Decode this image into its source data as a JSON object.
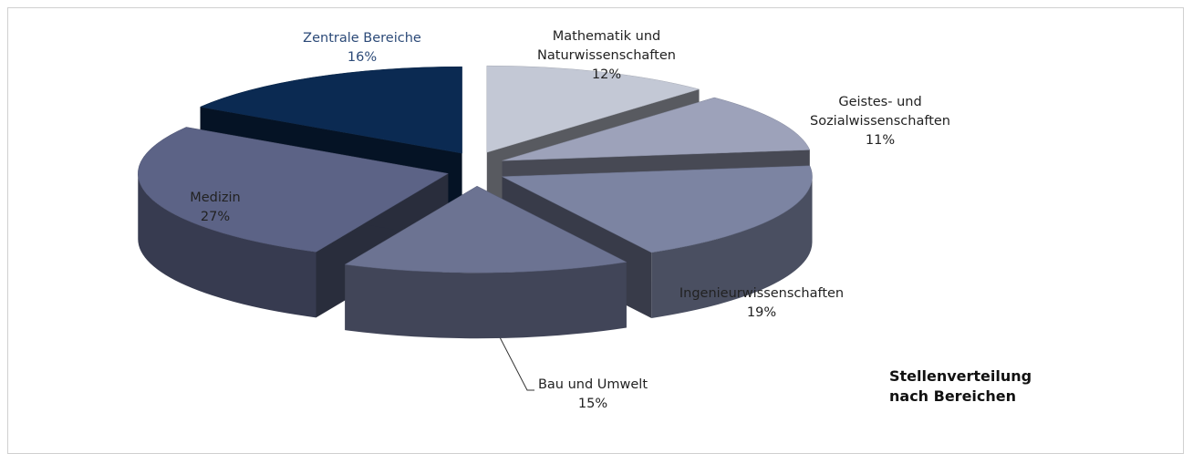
{
  "chart_data": {
    "type": "pie",
    "title": "Stellenverteilung nach Bereichen",
    "categories": [
      "Mathematik und Naturwissenschaften",
      "Geistes- und Sozialwissenschaften",
      "Ingenieurwissenschaften",
      "Bau und Umwelt",
      "Medizin",
      "Zentrale Bereiche"
    ],
    "values": [
      12,
      11,
      19,
      15,
      27,
      16
    ],
    "value_labels": [
      "12%",
      "11%",
      "19%",
      "15%",
      "27%",
      "16%"
    ],
    "colors": [
      "#c3c8d5",
      "#9da2ba",
      "#7c84a2",
      "#6c7392",
      "#5c6386",
      "#0b2a52"
    ]
  }
}
